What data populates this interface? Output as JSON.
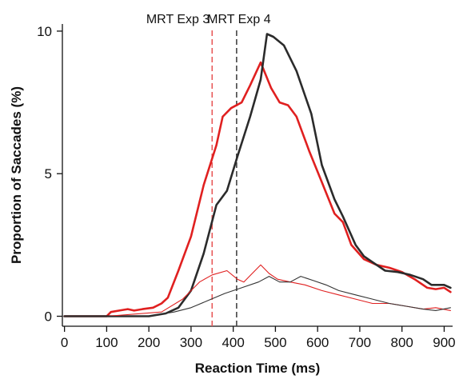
{
  "chart_data": {
    "type": "line",
    "title": "",
    "xlabel": "Reaction Time (ms)",
    "ylabel": "Proportion of Saccades (%)",
    "xlim": [
      -5,
      920
    ],
    "ylim": [
      -0.35,
      10.25
    ],
    "xticks": [
      0,
      100,
      200,
      300,
      400,
      500,
      600,
      700,
      800,
      900
    ],
    "yticks": [
      0,
      5,
      10
    ],
    "grid": false,
    "legend": "none",
    "series": [
      {
        "color": "#e02020",
        "weight": "thick",
        "points": [
          [
            0,
            0
          ],
          [
            100,
            0
          ],
          [
            110,
            0.15
          ],
          [
            130,
            0.2
          ],
          [
            150,
            0.25
          ],
          [
            165,
            0.2
          ],
          [
            185,
            0.25
          ],
          [
            210,
            0.3
          ],
          [
            230,
            0.45
          ],
          [
            245,
            0.65
          ],
          [
            270,
            1.6
          ],
          [
            300,
            2.8
          ],
          [
            330,
            4.6
          ],
          [
            360,
            6.0
          ],
          [
            375,
            7.0
          ],
          [
            395,
            7.3
          ],
          [
            420,
            7.5
          ],
          [
            440,
            8.1
          ],
          [
            465,
            8.9
          ],
          [
            490,
            8.0
          ],
          [
            510,
            7.5
          ],
          [
            530,
            7.4
          ],
          [
            550,
            7.0
          ],
          [
            580,
            5.8
          ],
          [
            610,
            4.7
          ],
          [
            640,
            3.6
          ],
          [
            660,
            3.3
          ],
          [
            680,
            2.5
          ],
          [
            710,
            2.0
          ],
          [
            740,
            1.8
          ],
          [
            770,
            1.7
          ],
          [
            800,
            1.55
          ],
          [
            830,
            1.3
          ],
          [
            860,
            1.0
          ],
          [
            880,
            0.95
          ],
          [
            900,
            1.0
          ],
          [
            915,
            0.85
          ]
        ]
      },
      {
        "color": "#2b2b2b",
        "weight": "thick",
        "points": [
          [
            0,
            0
          ],
          [
            200,
            0
          ],
          [
            240,
            0.1
          ],
          [
            270,
            0.3
          ],
          [
            300,
            0.9
          ],
          [
            330,
            2.2
          ],
          [
            360,
            3.9
          ],
          [
            385,
            4.4
          ],
          [
            410,
            5.6
          ],
          [
            440,
            7.0
          ],
          [
            465,
            8.3
          ],
          [
            480,
            9.9
          ],
          [
            495,
            9.8
          ],
          [
            520,
            9.5
          ],
          [
            550,
            8.6
          ],
          [
            585,
            7.1
          ],
          [
            610,
            5.3
          ],
          [
            640,
            4.1
          ],
          [
            660,
            3.5
          ],
          [
            690,
            2.5
          ],
          [
            710,
            2.1
          ],
          [
            730,
            1.9
          ],
          [
            760,
            1.6
          ],
          [
            790,
            1.55
          ],
          [
            820,
            1.45
          ],
          [
            850,
            1.3
          ],
          [
            870,
            1.1
          ],
          [
            900,
            1.1
          ],
          [
            915,
            1.0
          ]
        ]
      },
      {
        "color": "#e02020",
        "weight": "thin",
        "points": [
          [
            0,
            0
          ],
          [
            100,
            0
          ],
          [
            230,
            0.15
          ],
          [
            280,
            0.6
          ],
          [
            320,
            1.2
          ],
          [
            350,
            1.45
          ],
          [
            385,
            1.6
          ],
          [
            410,
            1.3
          ],
          [
            425,
            1.2
          ],
          [
            445,
            1.5
          ],
          [
            465,
            1.8
          ],
          [
            485,
            1.5
          ],
          [
            505,
            1.3
          ],
          [
            535,
            1.2
          ],
          [
            570,
            1.1
          ],
          [
            610,
            0.9
          ],
          [
            650,
            0.75
          ],
          [
            690,
            0.6
          ],
          [
            730,
            0.45
          ],
          [
            770,
            0.45
          ],
          [
            810,
            0.35
          ],
          [
            850,
            0.25
          ],
          [
            880,
            0.3
          ],
          [
            915,
            0.2
          ]
        ]
      },
      {
        "color": "#333333",
        "weight": "thin",
        "points": [
          [
            0,
            0
          ],
          [
            200,
            0
          ],
          [
            260,
            0.15
          ],
          [
            300,
            0.3
          ],
          [
            340,
            0.55
          ],
          [
            380,
            0.8
          ],
          [
            420,
            1.0
          ],
          [
            460,
            1.2
          ],
          [
            485,
            1.4
          ],
          [
            510,
            1.2
          ],
          [
            535,
            1.2
          ],
          [
            560,
            1.4
          ],
          [
            590,
            1.25
          ],
          [
            620,
            1.1
          ],
          [
            650,
            0.9
          ],
          [
            690,
            0.75
          ],
          [
            730,
            0.6
          ],
          [
            770,
            0.45
          ],
          [
            810,
            0.35
          ],
          [
            850,
            0.25
          ],
          [
            880,
            0.2
          ],
          [
            915,
            0.3
          ]
        ]
      }
    ],
    "vlines": [
      {
        "x": 350,
        "color": "#e85a5a",
        "style": "dashed"
      },
      {
        "x": 408,
        "color": "#444444",
        "style": "dashed"
      }
    ],
    "annotations": [
      {
        "text": "MRT Exp 3",
        "x": 350
      },
      {
        "text": "MRT Exp 4",
        "x": 408
      }
    ]
  }
}
